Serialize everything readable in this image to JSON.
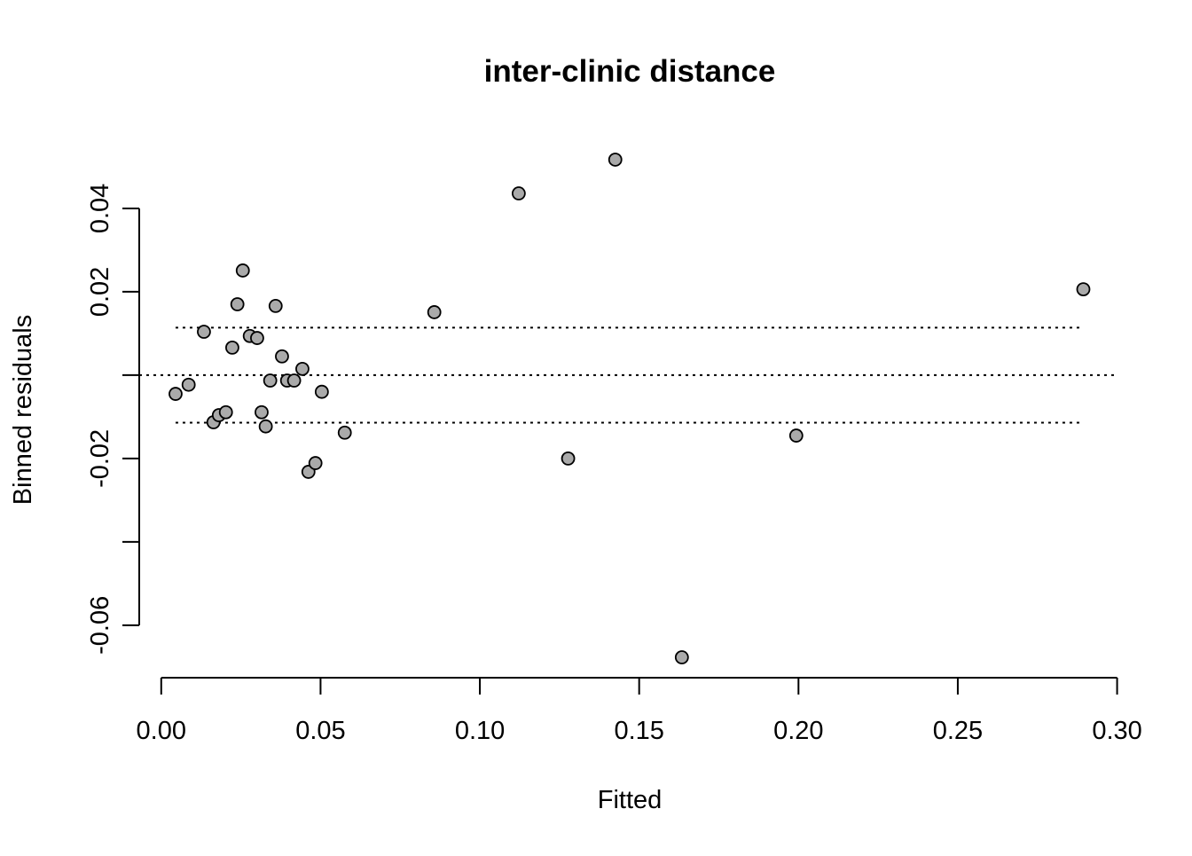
{
  "chart_data": {
    "type": "scatter",
    "title": "inter-clinic distance",
    "x_label": "Fitted",
    "y_label": "Binned residuals",
    "x": [
      0.0045,
      0.0086,
      0.0134,
      0.0164,
      0.0181,
      0.0203,
      0.0223,
      0.0239,
      0.0256,
      0.0278,
      0.0301,
      0.0315,
      0.0328,
      0.0342,
      0.0359,
      0.0379,
      0.0395,
      0.0417,
      0.0443,
      0.0462,
      0.0484,
      0.0504,
      0.0576,
      0.0857,
      0.1122,
      0.1277,
      0.1425,
      0.1634,
      0.1993,
      0.2894
    ],
    "values": [
      -0.0045,
      -0.0023,
      0.0104,
      -0.0113,
      -0.0096,
      -0.0089,
      0.0066,
      0.017,
      0.0251,
      0.0094,
      0.0089,
      -0.0089,
      -0.0123,
      -0.0013,
      0.0166,
      0.0045,
      -0.0013,
      -0.0013,
      0.0015,
      -0.0232,
      -0.0211,
      -0.004,
      -0.0138,
      0.0151,
      0.0436,
      -0.02,
      0.0517,
      -0.0677,
      -0.0145,
      0.0206
    ],
    "color": "#aaaaaa",
    "bounds": {
      "x": [
        0.0045,
        0.2894
      ],
      "upper": [
        0.0114,
        0.0114
      ],
      "lower": [
        -0.0114,
        -0.0114
      ]
    },
    "hline": 0,
    "xlim": [
      -0.0069,
      0.3004
    ],
    "ylim": [
      -0.0728,
      0.0568
    ],
    "xticks": [
      {
        "value": 0,
        "label": "0.00"
      },
      0.05,
      {
        "value": 0.1,
        "label": "0.10"
      },
      0.15,
      {
        "value": 0.2,
        "label": "0.20"
      },
      0.25,
      {
        "value": 0.3,
        "label": "0.30"
      }
    ],
    "yticks": [
      0.04,
      0.02,
      {
        "value": 0,
        "label": null
      },
      -0.02,
      {
        "value": -0.04,
        "label": null
      },
      -0.06
    ]
  }
}
